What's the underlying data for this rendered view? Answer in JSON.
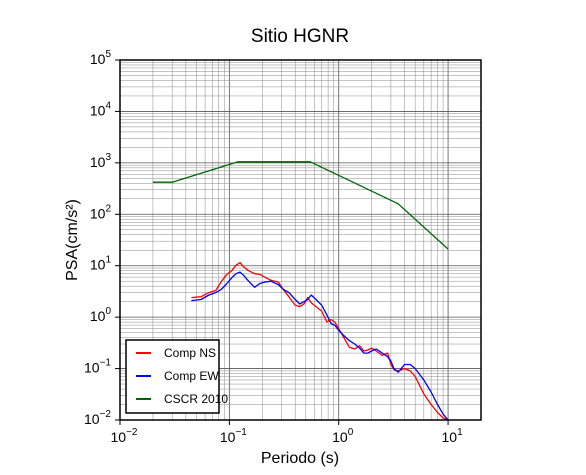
{
  "chart_data": {
    "type": "line",
    "title": "Sitio HGNR",
    "xlabel": "Periodo (s)",
    "ylabel": "PSA(cm/s²)",
    "xscale": "log",
    "yscale": "log",
    "xlim": [
      0.01,
      20
    ],
    "ylim": [
      0.01,
      100000
    ],
    "grid": true,
    "legend_position": "bottom-left",
    "x_ticks": [
      {
        "base": "10",
        "exp": "−2"
      },
      {
        "base": "10",
        "exp": "−1"
      },
      {
        "base": "10",
        "exp": "0"
      },
      {
        "base": "10",
        "exp": "1"
      }
    ],
    "y_ticks": [
      {
        "base": "10",
        "exp": "−2"
      },
      {
        "base": "10",
        "exp": "−1"
      },
      {
        "base": "10",
        "exp": "0"
      },
      {
        "base": "10",
        "exp": "1"
      },
      {
        "base": "10",
        "exp": "2"
      },
      {
        "base": "10",
        "exp": "3"
      },
      {
        "base": "10",
        "exp": "4"
      },
      {
        "base": "10",
        "exp": "5"
      }
    ],
    "series": [
      {
        "name": "Comp NS",
        "color": "#ff0000",
        "points": [
          [
            0.045,
            2.4
          ],
          [
            0.055,
            2.5
          ],
          [
            0.065,
            3.0
          ],
          [
            0.075,
            3.3
          ],
          [
            0.085,
            5.0
          ],
          [
            0.095,
            6.8
          ],
          [
            0.105,
            8.0
          ],
          [
            0.115,
            10.2
          ],
          [
            0.125,
            11.5
          ],
          [
            0.135,
            9.5
          ],
          [
            0.15,
            8.0
          ],
          [
            0.17,
            7.0
          ],
          [
            0.19,
            6.8
          ],
          [
            0.21,
            6.0
          ],
          [
            0.24,
            5.2
          ],
          [
            0.28,
            4.8
          ],
          [
            0.31,
            3.5
          ],
          [
            0.35,
            2.5
          ],
          [
            0.4,
            1.7
          ],
          [
            0.44,
            1.6
          ],
          [
            0.48,
            1.8
          ],
          [
            0.52,
            2.4
          ],
          [
            0.56,
            1.9
          ],
          [
            0.62,
            1.6
          ],
          [
            0.7,
            1.3
          ],
          [
            0.78,
            0.8
          ],
          [
            0.85,
            0.9
          ],
          [
            0.92,
            0.8
          ],
          [
            1.0,
            0.6
          ],
          [
            1.1,
            0.42
          ],
          [
            1.25,
            0.26
          ],
          [
            1.4,
            0.24
          ],
          [
            1.55,
            0.28
          ],
          [
            1.7,
            0.22
          ],
          [
            1.85,
            0.23
          ],
          [
            2.0,
            0.25
          ],
          [
            2.2,
            0.22
          ],
          [
            2.5,
            0.18
          ],
          [
            2.8,
            0.2
          ],
          [
            3.0,
            0.12
          ],
          [
            3.2,
            0.095
          ],
          [
            3.5,
            0.09
          ],
          [
            4.0,
            0.1
          ],
          [
            4.5,
            0.09
          ],
          [
            5.0,
            0.07
          ],
          [
            6.0,
            0.032
          ],
          [
            7.0,
            0.02
          ],
          [
            8.0,
            0.014
          ],
          [
            9.0,
            0.011
          ],
          [
            10.0,
            0.01
          ]
        ]
      },
      {
        "name": "Comp EW",
        "color": "#0000ff",
        "points": [
          [
            0.045,
            2.1
          ],
          [
            0.055,
            2.2
          ],
          [
            0.065,
            2.7
          ],
          [
            0.075,
            3.0
          ],
          [
            0.085,
            3.5
          ],
          [
            0.095,
            4.5
          ],
          [
            0.105,
            5.8
          ],
          [
            0.115,
            7.0
          ],
          [
            0.125,
            7.5
          ],
          [
            0.135,
            6.5
          ],
          [
            0.15,
            5.0
          ],
          [
            0.17,
            3.8
          ],
          [
            0.19,
            4.5
          ],
          [
            0.21,
            4.8
          ],
          [
            0.24,
            5.0
          ],
          [
            0.28,
            4.3
          ],
          [
            0.31,
            3.5
          ],
          [
            0.35,
            3.0
          ],
          [
            0.4,
            2.2
          ],
          [
            0.44,
            1.8
          ],
          [
            0.48,
            2.0
          ],
          [
            0.52,
            2.2
          ],
          [
            0.56,
            2.7
          ],
          [
            0.62,
            2.2
          ],
          [
            0.7,
            1.7
          ],
          [
            0.78,
            1.1
          ],
          [
            0.85,
            0.75
          ],
          [
            0.92,
            0.7
          ],
          [
            1.0,
            0.55
          ],
          [
            1.1,
            0.45
          ],
          [
            1.25,
            0.35
          ],
          [
            1.4,
            0.3
          ],
          [
            1.55,
            0.25
          ],
          [
            1.7,
            0.2
          ],
          [
            1.85,
            0.2
          ],
          [
            2.0,
            0.22
          ],
          [
            2.2,
            0.24
          ],
          [
            2.5,
            0.2
          ],
          [
            2.8,
            0.17
          ],
          [
            3.0,
            0.14
          ],
          [
            3.2,
            0.1
          ],
          [
            3.5,
            0.085
          ],
          [
            4.0,
            0.12
          ],
          [
            4.5,
            0.12
          ],
          [
            5.0,
            0.1
          ],
          [
            6.0,
            0.06
          ],
          [
            7.0,
            0.035
          ],
          [
            8.0,
            0.02
          ],
          [
            9.0,
            0.013
          ],
          [
            10.0,
            0.01
          ]
        ]
      },
      {
        "name": "CSCR 2010",
        "color": "#006400",
        "points": [
          [
            0.02,
            420
          ],
          [
            0.03,
            420
          ],
          [
            0.12,
            1050
          ],
          [
            0.55,
            1050
          ],
          [
            3.5,
            160
          ],
          [
            10.0,
            21
          ]
        ]
      }
    ]
  }
}
